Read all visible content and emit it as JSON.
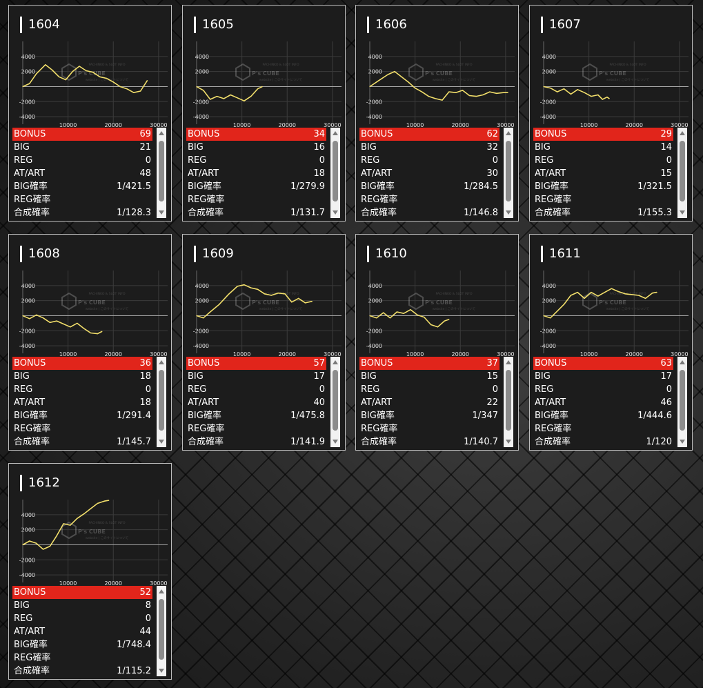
{
  "watermark": {
    "brand": "P's CUBE",
    "tagline": "PACHINKO & SLOT INFO",
    "sub": "website | このサイトについて"
  },
  "row_labels": {
    "bonus": "BONUS",
    "big": "BIG",
    "reg": "REG",
    "at_art": "AT/ART",
    "big_rate": "BIG確率",
    "reg_rate": "REG確率",
    "total_rate": "合成確率"
  },
  "machines": [
    {
      "id": "1604",
      "stats": {
        "bonus": "69",
        "big": "21",
        "reg": "0",
        "at_art": "48",
        "big_rate": "1/421.5",
        "reg_rate": "",
        "total_rate": "1/128.3"
      }
    },
    {
      "id": "1605",
      "stats": {
        "bonus": "34",
        "big": "16",
        "reg": "0",
        "at_art": "18",
        "big_rate": "1/279.9",
        "reg_rate": "",
        "total_rate": "1/131.7"
      }
    },
    {
      "id": "1606",
      "stats": {
        "bonus": "62",
        "big": "32",
        "reg": "0",
        "at_art": "30",
        "big_rate": "1/284.5",
        "reg_rate": "",
        "total_rate": "1/146.8"
      }
    },
    {
      "id": "1607",
      "stats": {
        "bonus": "29",
        "big": "14",
        "reg": "0",
        "at_art": "15",
        "big_rate": "1/321.5",
        "reg_rate": "",
        "total_rate": "1/155.3"
      }
    },
    {
      "id": "1608",
      "stats": {
        "bonus": "36",
        "big": "18",
        "reg": "0",
        "at_art": "18",
        "big_rate": "1/291.4",
        "reg_rate": "",
        "total_rate": "1/145.7"
      }
    },
    {
      "id": "1609",
      "stats": {
        "bonus": "57",
        "big": "17",
        "reg": "0",
        "at_art": "40",
        "big_rate": "1/475.8",
        "reg_rate": "",
        "total_rate": "1/141.9"
      }
    },
    {
      "id": "1610",
      "stats": {
        "bonus": "37",
        "big": "15",
        "reg": "0",
        "at_art": "22",
        "big_rate": "1/347",
        "reg_rate": "",
        "total_rate": "1/140.7"
      }
    },
    {
      "id": "1611",
      "stats": {
        "bonus": "63",
        "big": "17",
        "reg": "0",
        "at_art": "46",
        "big_rate": "1/444.6",
        "reg_rate": "",
        "total_rate": "1/120"
      }
    },
    {
      "id": "1612",
      "stats": {
        "bonus": "52",
        "big": "8",
        "reg": "0",
        "at_art": "44",
        "big_rate": "1/748.4",
        "reg_rate": "",
        "total_rate": "1/115.2"
      }
    }
  ],
  "chart_data": [
    {
      "type": "line",
      "machine": "1604",
      "xlim": [
        0,
        32000
      ],
      "ylim": [
        -5000,
        6000
      ],
      "xticks": [
        10000,
        20000,
        30000
      ],
      "yticks": [
        4000,
        2000,
        -2000,
        -4000
      ],
      "x": [
        0,
        1500,
        3000,
        5000,
        6500,
        8000,
        9500,
        11000,
        12500,
        14000,
        15500,
        17000,
        18500,
        20000,
        21500,
        23000,
        24500,
        26000,
        27500
      ],
      "y": [
        0,
        400,
        1700,
        2900,
        2200,
        1300,
        900,
        2000,
        2700,
        2100,
        1900,
        1300,
        1100,
        600,
        0,
        -300,
        -800,
        -600,
        800
      ]
    },
    {
      "type": "line",
      "machine": "1605",
      "xlim": [
        0,
        32000
      ],
      "ylim": [
        -5000,
        6000
      ],
      "xticks": [
        10000,
        20000,
        30000
      ],
      "yticks": [
        4000,
        2000,
        -2000,
        -4000
      ],
      "x": [
        0,
        1500,
        3000,
        4500,
        6000,
        7500,
        9000,
        10500,
        12000,
        13500,
        14500
      ],
      "y": [
        0,
        -500,
        -1700,
        -1300,
        -1600,
        -1100,
        -1500,
        -1900,
        -1300,
        -300,
        0
      ]
    },
    {
      "type": "line",
      "machine": "1606",
      "xlim": [
        0,
        32000
      ],
      "ylim": [
        -5000,
        6000
      ],
      "xticks": [
        10000,
        20000,
        30000
      ],
      "yticks": [
        4000,
        2000,
        -2000,
        -4000
      ],
      "x": [
        0,
        2000,
        4000,
        5500,
        7000,
        8500,
        10000,
        11500,
        13000,
        14500,
        16000,
        17500,
        19000,
        20500,
        22000,
        23500,
        25000,
        26500,
        28000,
        29500,
        30500
      ],
      "y": [
        0,
        800,
        1600,
        2000,
        1300,
        600,
        -200,
        -700,
        -1300,
        -1600,
        -1800,
        -700,
        -800,
        -500,
        -1200,
        -1300,
        -1100,
        -700,
        -900,
        -800,
        -800
      ]
    },
    {
      "type": "line",
      "machine": "1607",
      "xlim": [
        0,
        32000
      ],
      "ylim": [
        -5000,
        6000
      ],
      "xticks": [
        10000,
        20000,
        30000
      ],
      "yticks": [
        4000,
        2000,
        -2000,
        -4000
      ],
      "x": [
        0,
        1500,
        3000,
        4500,
        6000,
        7500,
        9000,
        10500,
        12000,
        13000,
        14000,
        14500
      ],
      "y": [
        0,
        -200,
        -700,
        -300,
        -1000,
        -400,
        -800,
        -1300,
        -1100,
        -1700,
        -1400,
        -1600
      ]
    },
    {
      "type": "line",
      "machine": "1608",
      "xlim": [
        0,
        32000
      ],
      "ylim": [
        -5000,
        6000
      ],
      "xticks": [
        10000,
        20000,
        30000
      ],
      "yticks": [
        4000,
        2000,
        -2000,
        -4000
      ],
      "x": [
        0,
        1500,
        3000,
        4500,
        6000,
        7500,
        9000,
        10500,
        12000,
        13500,
        15000,
        16500,
        17500
      ],
      "y": [
        0,
        -400,
        100,
        -300,
        -900,
        -700,
        -1100,
        -1500,
        -1000,
        -1700,
        -2300,
        -2400,
        -2100
      ]
    },
    {
      "type": "line",
      "machine": "1609",
      "xlim": [
        0,
        32000
      ],
      "ylim": [
        -5000,
        6000
      ],
      "xticks": [
        10000,
        20000,
        30000
      ],
      "yticks": [
        4000,
        2000,
        -2000,
        -4000
      ],
      "x": [
        0,
        1500,
        3000,
        5000,
        7000,
        9000,
        10500,
        12000,
        13500,
        15000,
        16500,
        18000,
        19500,
        21000,
        22500,
        24000,
        25500
      ],
      "y": [
        0,
        -300,
        500,
        1500,
        2800,
        3900,
        4100,
        3700,
        3500,
        2900,
        2700,
        3000,
        2900,
        1800,
        2300,
        1700,
        1900
      ]
    },
    {
      "type": "line",
      "machine": "1610",
      "xlim": [
        0,
        32000
      ],
      "ylim": [
        -5000,
        6000
      ],
      "xticks": [
        10000,
        20000,
        30000
      ],
      "yticks": [
        4000,
        2000,
        -2000,
        -4000
      ],
      "x": [
        0,
        1500,
        3000,
        4500,
        6000,
        7500,
        9000,
        10500,
        12000,
        13500,
        15000,
        16500,
        17500
      ],
      "y": [
        0,
        -300,
        400,
        -300,
        500,
        300,
        800,
        100,
        -200,
        -1200,
        -1500,
        -700,
        -500
      ]
    },
    {
      "type": "line",
      "machine": "1611",
      "xlim": [
        0,
        32000
      ],
      "ylim": [
        -5000,
        6000
      ],
      "xticks": [
        10000,
        20000,
        30000
      ],
      "yticks": [
        4000,
        2000,
        -2000,
        -4000
      ],
      "x": [
        0,
        1500,
        3000,
        4500,
        6000,
        7500,
        9000,
        10500,
        12000,
        13500,
        15000,
        16500,
        18000,
        19500,
        21000,
        22500,
        24000,
        25000
      ],
      "y": [
        0,
        -300,
        600,
        1500,
        2700,
        3100,
        2300,
        3100,
        2600,
        3100,
        3600,
        3200,
        2900,
        2800,
        2700,
        2300,
        3000,
        3100
      ]
    },
    {
      "type": "line",
      "machine": "1612",
      "xlim": [
        0,
        32000
      ],
      "ylim": [
        -5000,
        6000
      ],
      "xticks": [
        10000,
        20000,
        30000
      ],
      "yticks": [
        4000,
        2000,
        -2000,
        -4000
      ],
      "x": [
        0,
        1500,
        3000,
        4500,
        6000,
        7500,
        9000,
        10500,
        12000,
        13500,
        15000,
        16500,
        18000,
        19000
      ],
      "y": [
        0,
        500,
        200,
        -600,
        -200,
        1200,
        2800,
        2600,
        3500,
        4100,
        4800,
        5500,
        5800,
        5900
      ]
    }
  ]
}
